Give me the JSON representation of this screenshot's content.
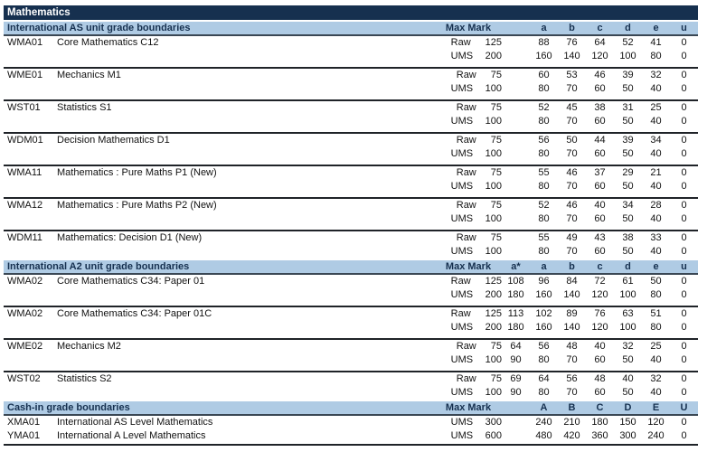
{
  "title": "Mathematics",
  "colors": {
    "navy_header": "#16304F",
    "section_band_blue": "#AFCBE4",
    "separator_line": "#1f2328"
  },
  "sections": [
    {
      "header": "International AS unit grade boundaries",
      "max_mark_label": "Max Mark",
      "grade_columns": [
        "a",
        "b",
        "c",
        "d",
        "e",
        "u"
      ],
      "units": [
        {
          "code": "WMA01",
          "title": "Core Mathematics C12",
          "rows": [
            {
              "type": "Raw",
              "max": "125",
              "values": [
                "88",
                "76",
                "64",
                "52",
                "41",
                "0"
              ]
            },
            {
              "type": "UMS",
              "max": "200",
              "values": [
                "160",
                "140",
                "120",
                "100",
                "80",
                "0"
              ]
            }
          ]
        },
        {
          "code": "WME01",
          "title": "Mechanics M1",
          "rows": [
            {
              "type": "Raw",
              "max": "75",
              "values": [
                "60",
                "53",
                "46",
                "39",
                "32",
                "0"
              ]
            },
            {
              "type": "UMS",
              "max": "100",
              "values": [
                "80",
                "70",
                "60",
                "50",
                "40",
                "0"
              ]
            }
          ]
        },
        {
          "code": "WST01",
          "title": "Statistics S1",
          "rows": [
            {
              "type": "Raw",
              "max": "75",
              "values": [
                "52",
                "45",
                "38",
                "31",
                "25",
                "0"
              ]
            },
            {
              "type": "UMS",
              "max": "100",
              "values": [
                "80",
                "70",
                "60",
                "50",
                "40",
                "0"
              ]
            }
          ]
        },
        {
          "code": "WDM01",
          "title": "Decision Mathematics D1",
          "rows": [
            {
              "type": "Raw",
              "max": "75",
              "values": [
                "56",
                "50",
                "44",
                "39",
                "34",
                "0"
              ]
            },
            {
              "type": "UMS",
              "max": "100",
              "values": [
                "80",
                "70",
                "60",
                "50",
                "40",
                "0"
              ]
            }
          ]
        },
        {
          "code": "WMA11",
          "title": "Mathematics : Pure Maths P1 (New)",
          "rows": [
            {
              "type": "Raw",
              "max": "75",
              "values": [
                "55",
                "46",
                "37",
                "29",
                "21",
                "0"
              ]
            },
            {
              "type": "UMS",
              "max": "100",
              "values": [
                "80",
                "70",
                "60",
                "50",
                "40",
                "0"
              ]
            }
          ]
        },
        {
          "code": "WMA12",
          "title": "Mathematics : Pure Maths P2 (New)",
          "rows": [
            {
              "type": "Raw",
              "max": "75",
              "values": [
                "52",
                "46",
                "40",
                "34",
                "28",
                "0"
              ]
            },
            {
              "type": "UMS",
              "max": "100",
              "values": [
                "80",
                "70",
                "60",
                "50",
                "40",
                "0"
              ]
            }
          ]
        },
        {
          "code": "WDM11",
          "title": "Mathematics: Decision D1 (New)",
          "rows": [
            {
              "type": "Raw",
              "max": "75",
              "values": [
                "55",
                "49",
                "43",
                "38",
                "33",
                "0"
              ]
            },
            {
              "type": "UMS",
              "max": "100",
              "values": [
                "80",
                "70",
                "60",
                "50",
                "40",
                "0"
              ]
            }
          ]
        }
      ]
    },
    {
      "header": "International A2 unit grade boundaries",
      "max_mark_label": "Max Mark",
      "grade_columns": [
        "a*",
        "a",
        "b",
        "c",
        "d",
        "e",
        "u"
      ],
      "units": [
        {
          "code": "WMA02",
          "title": "Core Mathematics C34: Paper 01",
          "rows": [
            {
              "type": "Raw",
              "max": "125",
              "values": [
                "108",
                "96",
                "84",
                "72",
                "61",
                "50",
                "0"
              ]
            },
            {
              "type": "UMS",
              "max": "200",
              "values": [
                "180",
                "160",
                "140",
                "120",
                "100",
                "80",
                "0"
              ]
            }
          ]
        },
        {
          "code": "WMA02",
          "title": "Core Mathematics C34: Paper 01C",
          "rows": [
            {
              "type": "Raw",
              "max": "125",
              "values": [
                "113",
                "102",
                "89",
                "76",
                "63",
                "51",
                "0"
              ]
            },
            {
              "type": "UMS",
              "max": "200",
              "values": [
                "180",
                "160",
                "140",
                "120",
                "100",
                "80",
                "0"
              ]
            }
          ]
        },
        {
          "code": "WME02",
          "title": "Mechanics M2",
          "rows": [
            {
              "type": "Raw",
              "max": "75",
              "values": [
                "64",
                "56",
                "48",
                "40",
                "32",
                "25",
                "0"
              ]
            },
            {
              "type": "UMS",
              "max": "100",
              "values": [
                "90",
                "80",
                "70",
                "60",
                "50",
                "40",
                "0"
              ]
            }
          ]
        },
        {
          "code": "WST02",
          "title": "Statistics S2",
          "rows": [
            {
              "type": "Raw",
              "max": "75",
              "values": [
                "69",
                "64",
                "56",
                "48",
                "40",
                "32",
                "0"
              ]
            },
            {
              "type": "UMS",
              "max": "100",
              "values": [
                "90",
                "80",
                "70",
                "60",
                "50",
                "40",
                "0"
              ]
            }
          ]
        }
      ]
    },
    {
      "header": "Cash-in grade boundaries",
      "max_mark_label": "Max Mark",
      "grade_columns": [
        "A",
        "B",
        "C",
        "D",
        "E",
        "U"
      ],
      "no_group_separators": true,
      "units": [
        {
          "code": "XMA01",
          "title": "International AS Level Mathematics",
          "rows": [
            {
              "type": "UMS",
              "max": "300",
              "values": [
                "240",
                "210",
                "180",
                "150",
                "120",
                "0"
              ]
            }
          ]
        },
        {
          "code": "YMA01",
          "title": "International A Level Mathematics",
          "rows": [
            {
              "type": "UMS",
              "max": "600",
              "values": [
                "480",
                "420",
                "360",
                "300",
                "240",
                "0"
              ]
            }
          ]
        }
      ]
    }
  ]
}
